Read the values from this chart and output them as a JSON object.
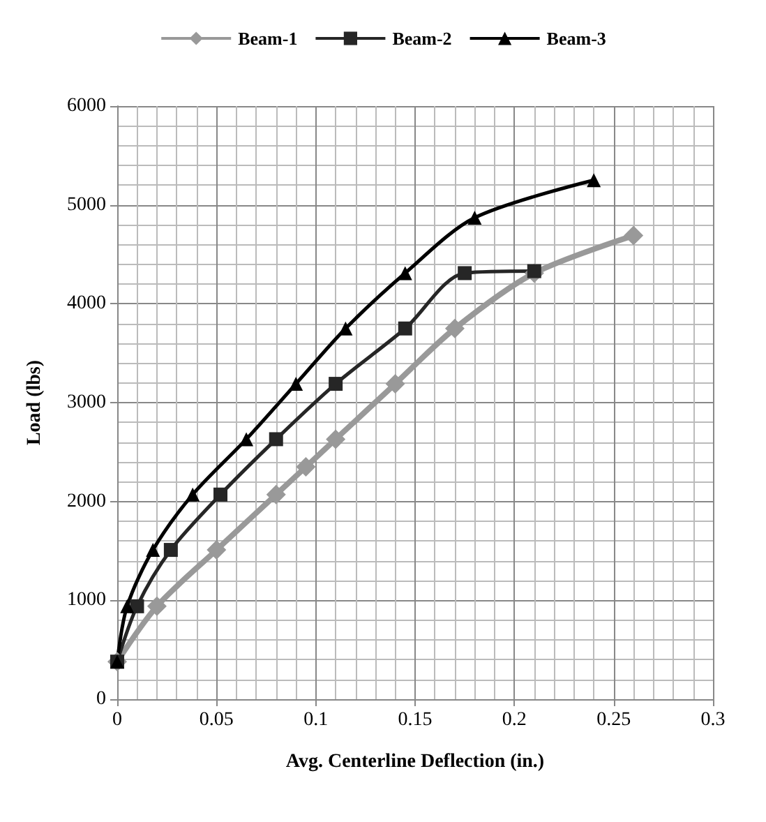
{
  "chart_data": {
    "type": "line",
    "xlabel": "Avg. Centerline Deflection (in.)",
    "ylabel": "Load (lbs)",
    "xlim": [
      0,
      0.3
    ],
    "xticks": [
      0,
      0.05,
      0.1,
      0.15,
      0.2,
      0.25,
      0.3
    ],
    "ylim": [
      0,
      6000
    ],
    "yticks": [
      0,
      1000,
      2000,
      3000,
      4000,
      5000,
      6000
    ],
    "grid": true,
    "legend": "top",
    "series": [
      {
        "name": "Beam-1",
        "color": "#999999",
        "marker": "diamond",
        "x": [
          0,
          0.02,
          0.05,
          0.08,
          0.095,
          0.11,
          0.14,
          0.17,
          0.21,
          0.26
        ],
        "values": [
          380,
          940,
          1510,
          2070,
          2350,
          2630,
          3190,
          3750,
          4310,
          4690
        ]
      },
      {
        "name": "Beam-2",
        "color": "#262626",
        "marker": "square",
        "x": [
          0,
          0.01,
          0.027,
          0.052,
          0.08,
          0.11,
          0.145,
          0.175,
          0.21
        ],
        "values": [
          380,
          940,
          1510,
          2070,
          2630,
          3190,
          3750,
          4310,
          4330
        ]
      },
      {
        "name": "Beam-3",
        "color": "#000000",
        "marker": "triangle",
        "x": [
          0,
          0.005,
          0.018,
          0.038,
          0.065,
          0.09,
          0.115,
          0.145,
          0.18,
          0.24
        ],
        "values": [
          380,
          940,
          1510,
          2070,
          2630,
          3190,
          3750,
          4310,
          4870,
          5250
        ]
      }
    ]
  }
}
